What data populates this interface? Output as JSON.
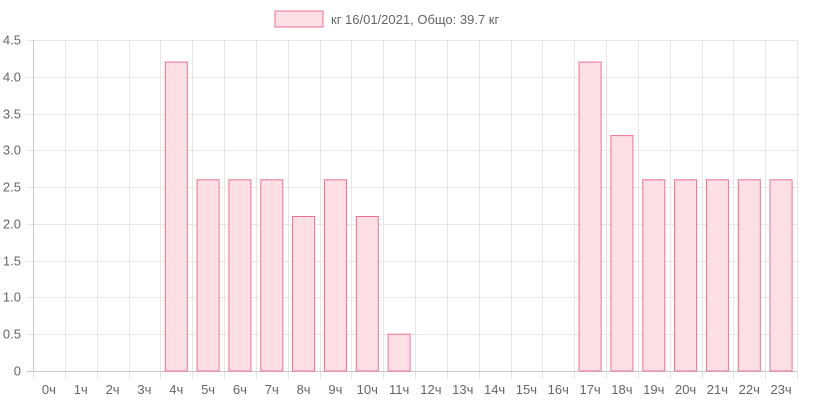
{
  "chart_data": {
    "type": "bar",
    "legend": {
      "label": "кг 16/01/2021, Общо: 39.7 кг",
      "position": "top-center"
    },
    "categories": [
      "0ч",
      "1ч",
      "2ч",
      "3ч",
      "4ч",
      "5ч",
      "6ч",
      "7ч",
      "8ч",
      "9ч",
      "10ч",
      "11ч",
      "12ч",
      "13ч",
      "14ч",
      "15ч",
      "16ч",
      "17ч",
      "18ч",
      "19ч",
      "20ч",
      "21ч",
      "22ч",
      "23ч"
    ],
    "series": [
      {
        "name": "кг 16/01/2021, Общо: 39.7 кг",
        "values": [
          0,
          0,
          0,
          0,
          4.2,
          2.6,
          2.6,
          2.6,
          2.1,
          2.6,
          2.1,
          0.5,
          0,
          0,
          0,
          0,
          0,
          4.2,
          3.2,
          2.6,
          2.6,
          2.6,
          2.6,
          2.6
        ]
      }
    ],
    "ylim": [
      0,
      4.5
    ],
    "yticks": [
      "0",
      "0.5",
      "1.0",
      "1.5",
      "2.0",
      "2.5",
      "3.0",
      "3.5",
      "4.0",
      "4.5"
    ],
    "grid": true,
    "colors": {
      "bar_fill": "#fde0e6",
      "bar_border": "#f0718f",
      "grid": "#e6e6e6",
      "axis": "#c8c8c8",
      "text": "#666666"
    }
  }
}
